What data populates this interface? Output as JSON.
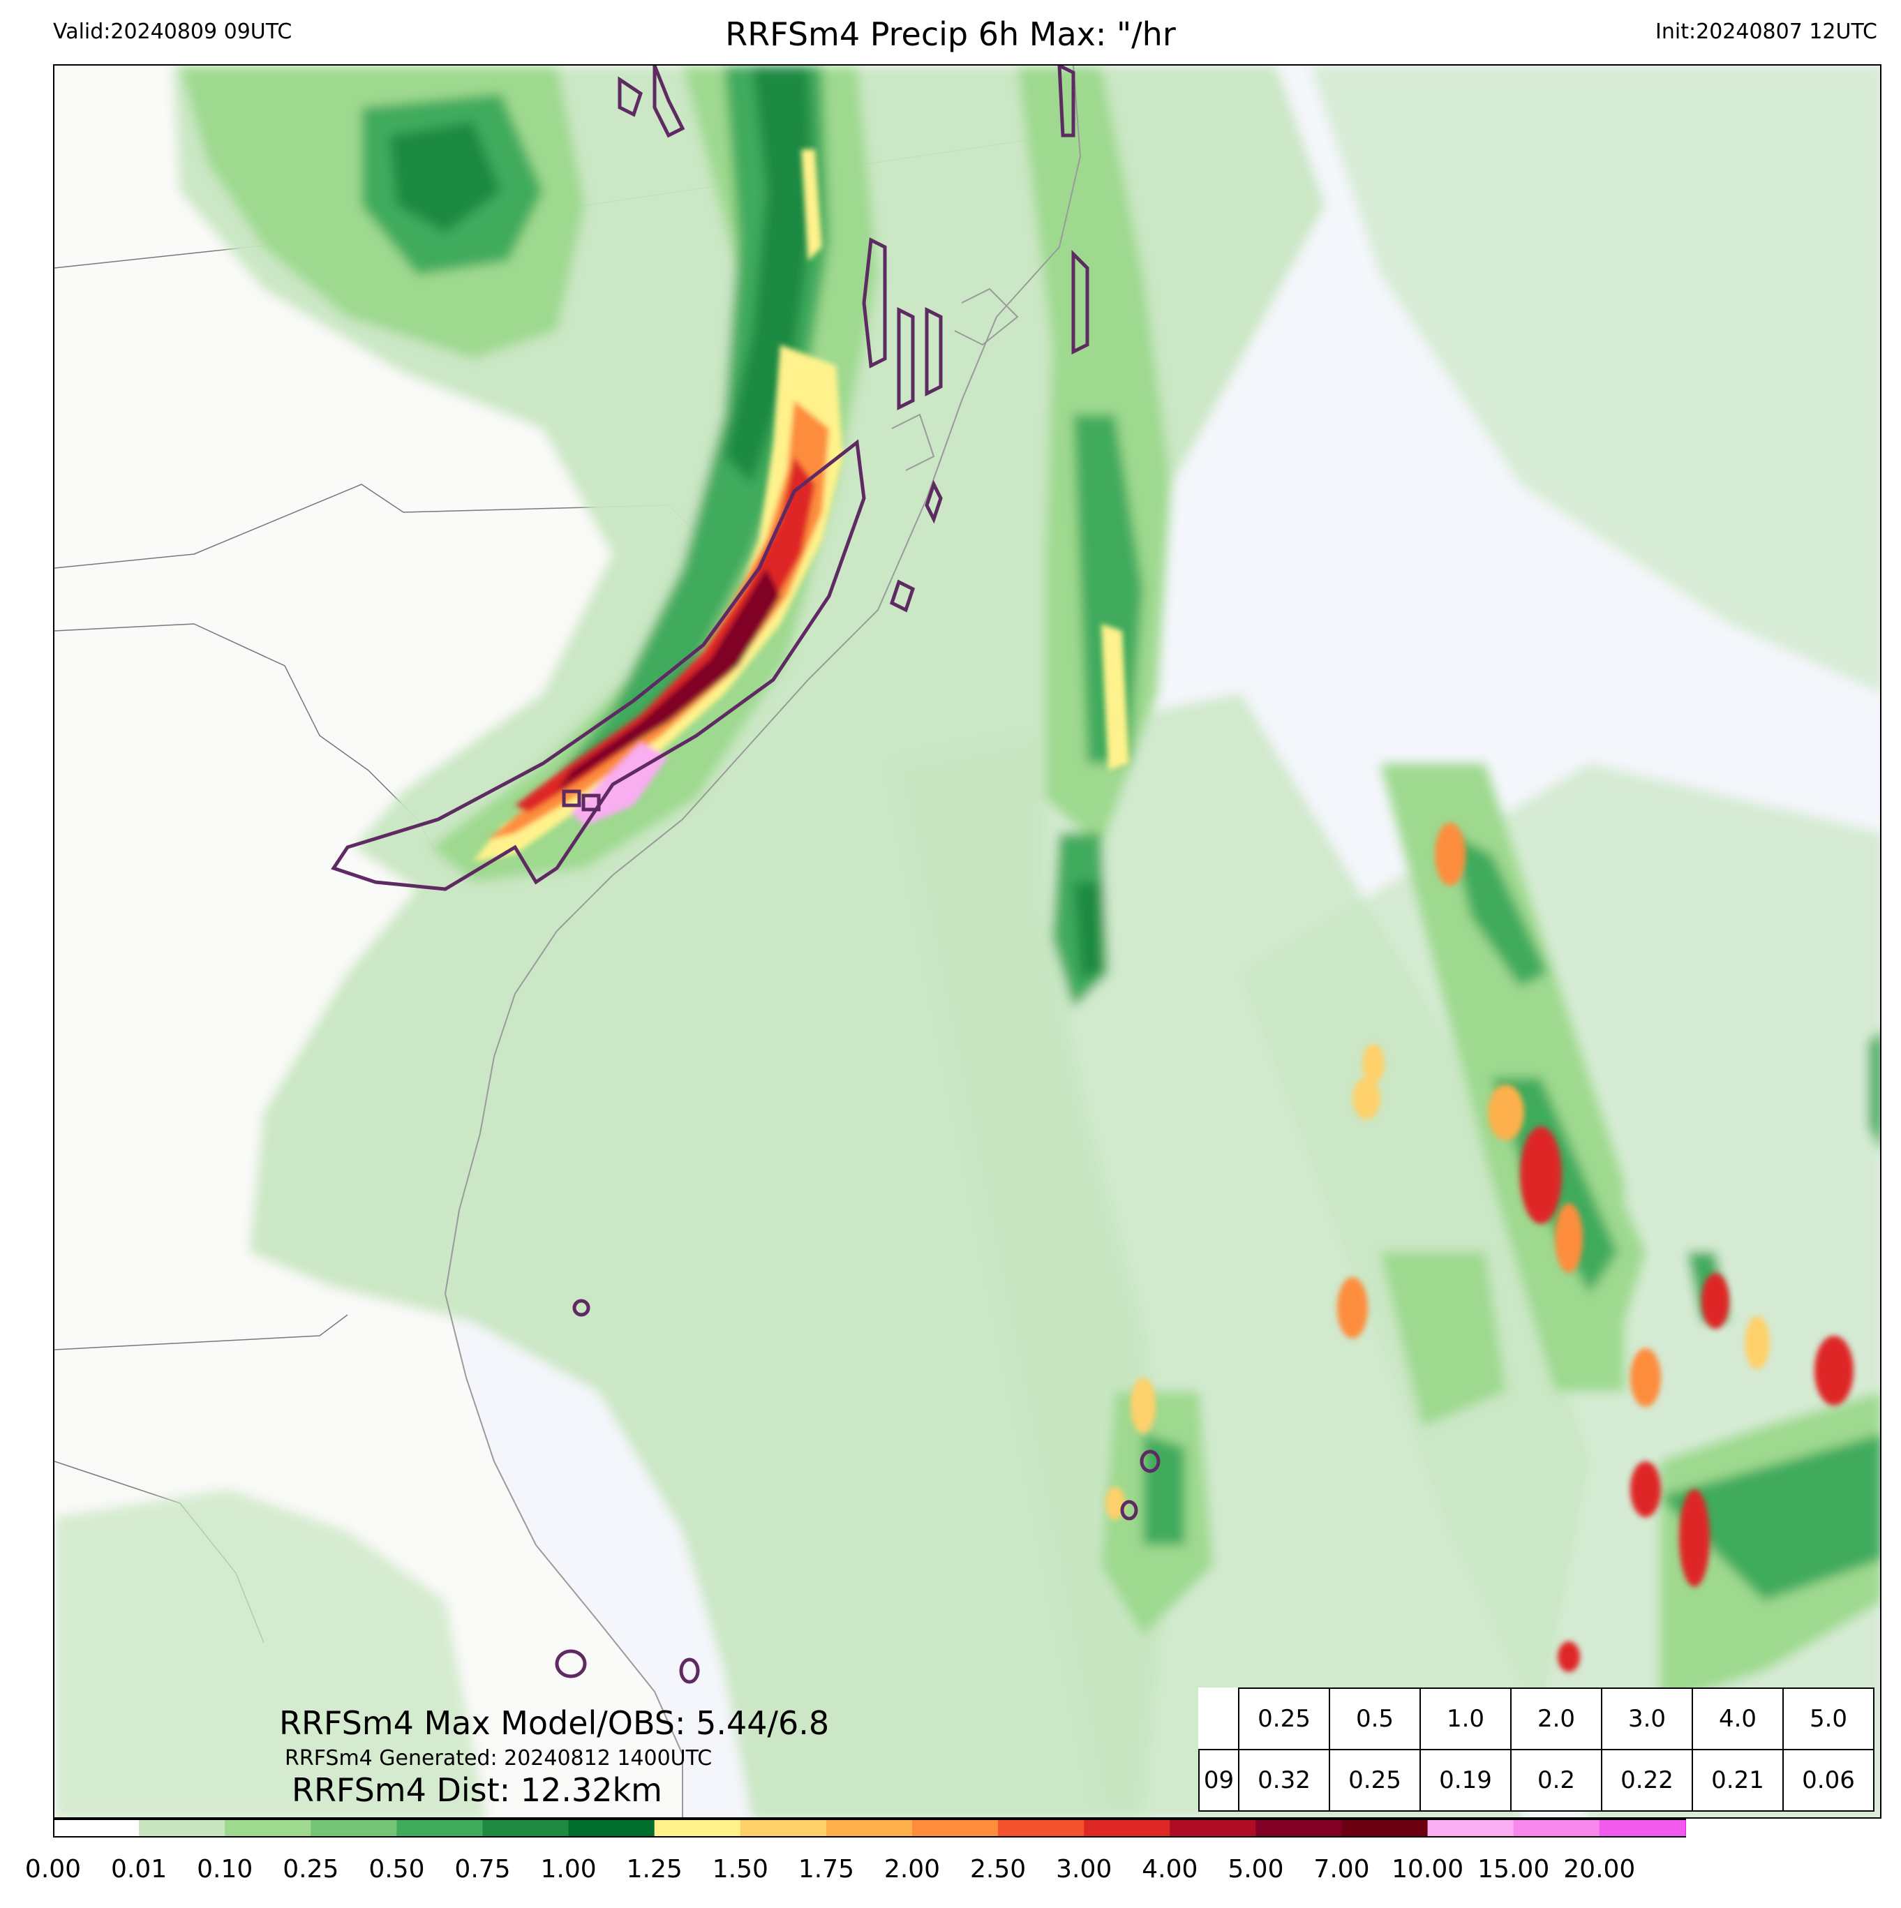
{
  "header": {
    "valid": "Valid:20240809 09UTC",
    "title": "RRFSm4 Precip 6h Max: \"/hr",
    "init": "Init:20240807 12UTC"
  },
  "annotations": {
    "max_model_obs": "RRFSm4 Max Model/OBS: 5.44/6.8",
    "generated": "RRFSm4 Generated: 20240812 1400UTC",
    "dist": "RRFSm4 Dist: 12.32km"
  },
  "stats_table": {
    "thresholds": [
      "0.25",
      "0.5",
      "1.0",
      "2.0",
      "3.0",
      "4.0",
      "5.0"
    ],
    "row_label": "09",
    "values": [
      "0.32",
      "0.25",
      "0.19",
      "0.2",
      "0.22",
      "0.21",
      "0.06"
    ]
  },
  "colorbar": {
    "ticks": [
      "0.00",
      "0.01",
      "0.10",
      "0.25",
      "0.50",
      "0.75",
      "1.00",
      "1.25",
      "1.50",
      "1.75",
      "2.00",
      "2.50",
      "3.00",
      "4.00",
      "5.00",
      "7.00",
      "10.00",
      "15.00",
      "20.00"
    ],
    "colors": [
      "#ffffff",
      "#c8e6c2",
      "#9ed98f",
      "#74c476",
      "#41ab5d",
      "#1e8a42",
      "#006d2c",
      "#fff28c",
      "#fed06a",
      "#fdb04c",
      "#fd8d3c",
      "#f4522c",
      "#de2826",
      "#b00c26",
      "#800026",
      "#6a0010",
      "#f8aef0",
      "#f787ea",
      "#f25aee",
      "#e625f0",
      "#cc00e8",
      "#9a10c8"
    ]
  },
  "map_colors": {
    "land": "#fafaf8",
    "ocean": "#f4f6fb",
    "obs_contour": "#5e2a62"
  }
}
